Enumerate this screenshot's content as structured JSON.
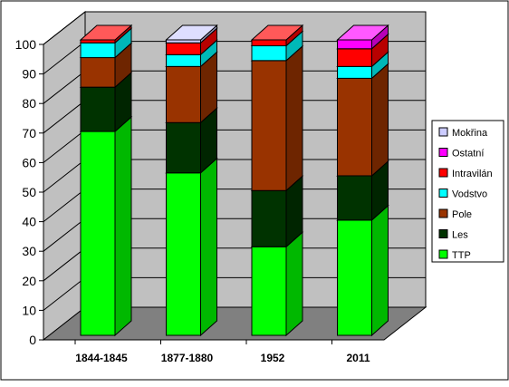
{
  "colors": {
    "TTP": "#00ff00",
    "Les": "#003300",
    "Pole": "#993300",
    "Vodstvo": "#00ffff",
    "Intravilán": "#ff0000",
    "Ostatní": "#ff00ff",
    "Mokřina": "#ccccff",
    "wall": "#c0c0c0",
    "floor": "#808080"
  },
  "chart_data": {
    "type": "bar",
    "stacked": true,
    "three_d": true,
    "categories": [
      "1844-1845",
      "1877-1880",
      "1952",
      "2011"
    ],
    "series": [
      {
        "name": "TTP",
        "values": [
          69,
          55,
          30,
          39
        ]
      },
      {
        "name": "Les",
        "values": [
          15,
          17,
          19,
          15
        ]
      },
      {
        "name": "Pole",
        "values": [
          10,
          19,
          44,
          33
        ]
      },
      {
        "name": "Vodstvo",
        "values": [
          5,
          4,
          5,
          4
        ]
      },
      {
        "name": "Intravilán",
        "values": [
          1,
          4,
          2,
          6
        ]
      },
      {
        "name": "Ostatní",
        "values": [
          0,
          0,
          0,
          3
        ]
      },
      {
        "name": "Mokřina",
        "values": [
          0,
          1,
          0,
          0
        ]
      }
    ],
    "ylim": [
      0,
      100
    ],
    "yticks": [
      0,
      10,
      20,
      30,
      40,
      50,
      60,
      70,
      80,
      90,
      100
    ],
    "grid": true,
    "legend": [
      "Mokřina",
      "Ostatní",
      "Intravilán",
      "Vodstvo",
      "Pole",
      "Les",
      "TTP"
    ],
    "legend_position": "right"
  }
}
